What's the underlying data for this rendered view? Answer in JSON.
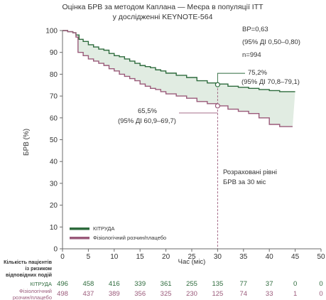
{
  "chart_data": {
    "type": "line",
    "title_lines": [
      "Оцінка БРВ за методом Каплана — Меєра в популяції ITT",
      "у дослідженні KEYNOTE-564"
    ],
    "xlabel": "Час (міс)",
    "ylabel": "БРВ (%)",
    "xlim": [
      0,
      50
    ],
    "ylim": [
      0,
      100
    ],
    "x_ticks": [
      0,
      5,
      10,
      15,
      20,
      25,
      30,
      35,
      40,
      45,
      50
    ],
    "y_ticks": [
      0,
      10,
      20,
      30,
      40,
      50,
      60,
      70,
      80,
      90,
      100
    ],
    "grid": false,
    "legend_position": "bottom-left",
    "shaded_region_between_series": true,
    "series": [
      {
        "name": "КІТРУДА",
        "color": "#2e6b3d",
        "x": [
          0,
          1,
          2,
          2.6,
          3.2,
          4,
          5,
          6,
          7,
          8,
          9,
          10,
          11,
          12,
          13,
          14,
          15,
          16,
          17,
          18,
          19,
          20,
          22,
          24,
          26,
          28,
          30,
          32,
          34,
          36,
          38,
          40,
          42,
          45
        ],
        "y": [
          100,
          99.5,
          99,
          98,
          96,
          95,
          93.5,
          92.5,
          91.5,
          91,
          89.5,
          88.5,
          88,
          87,
          86,
          85,
          84,
          83.5,
          83,
          82,
          81.5,
          80.5,
          79.5,
          78.5,
          77,
          76,
          75.5,
          74.5,
          74,
          73.5,
          73,
          72.5,
          72,
          72
        ]
      },
      {
        "name": "Фізіологічний розчин/плацебо",
        "color": "#9a5a7a",
        "x": [
          0,
          1,
          2,
          2.6,
          3,
          4,
          5,
          6,
          7,
          8,
          9,
          10,
          11,
          12,
          13,
          14,
          15,
          16,
          17,
          18,
          19,
          20,
          22,
          24,
          26,
          28,
          30,
          32,
          34,
          36,
          38,
          40,
          42,
          44.5
        ],
        "y": [
          100,
          99.5,
          99,
          97,
          90,
          88.5,
          87,
          86,
          85,
          84,
          82.5,
          81.5,
          80,
          79,
          78,
          77,
          75.5,
          74.5,
          73.5,
          73,
          72,
          71,
          70,
          69,
          67.5,
          66.5,
          65.5,
          64,
          63,
          62,
          60,
          57,
          56,
          56
        ]
      }
    ],
    "hazard_ratio_text": "ВР=0,63",
    "hazard_ratio_ci_text": "(95% ДІ 0,50–0,80)",
    "n_text": "n=994",
    "annotation_keytruda": {
      "value": "75,2%",
      "ci": "(95% ДІ 70,8–79,1)",
      "x": 30,
      "y": 75.2
    },
    "annotation_placebo": {
      "value": "65,5%",
      "ci": "(95% ДІ 60,9–69,7)",
      "x": 30,
      "y": 65.5
    },
    "vertical_marker": {
      "x": 30,
      "label_lines": [
        "Розраховані рівні",
        "БРВ за 30 міс"
      ]
    },
    "risk_table": {
      "header_lines": [
        "Кількість пацієнтів",
        "із ризиком",
        "відповідних подій"
      ],
      "times": [
        0,
        5,
        10,
        15,
        20,
        25,
        30,
        35,
        40,
        45,
        50
      ],
      "rows": [
        {
          "label": "КІТРУДА",
          "color": "#2e6b3d",
          "values": [
            "496",
            "458",
            "416",
            "339",
            "361",
            "255",
            "135",
            "77",
            "37",
            "0",
            "0"
          ]
        },
        {
          "label_lines": [
            "Фізіологічний",
            "розчин/плацебо"
          ],
          "color": "#9a5a7a",
          "values": [
            "498",
            "437",
            "389",
            "356",
            "325",
            "230",
            "125",
            "74",
            "33",
            "1",
            "0"
          ]
        }
      ]
    },
    "colors": {
      "shade": "#e1ece2",
      "axis": "#6b6b6b",
      "text": "#333333"
    }
  }
}
